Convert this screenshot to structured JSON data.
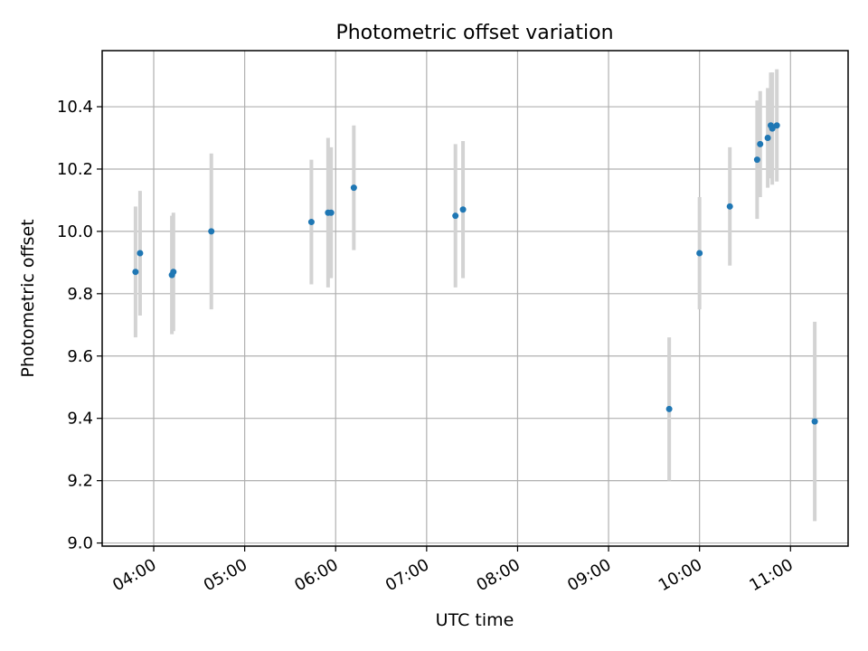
{
  "chart_data": {
    "type": "scatter",
    "title": "Photometric offset variation",
    "xlabel": "UTC time",
    "ylabel": "Photometric offset",
    "x_ticks": [
      "04:00",
      "05:00",
      "06:00",
      "07:00",
      "08:00",
      "09:00",
      "10:00",
      "11:00"
    ],
    "y_ticks": [
      "9.0",
      "9.2",
      "9.4",
      "9.6",
      "9.8",
      "10.0",
      "10.2",
      "10.4"
    ],
    "xlim": [
      "03:26",
      "11:38"
    ],
    "ylim": [
      8.99,
      10.58
    ],
    "grid": true,
    "points": [
      {
        "x": "03:48",
        "y": 9.87,
        "err": 0.21
      },
      {
        "x": "03:51",
        "y": 9.93,
        "err": 0.2
      },
      {
        "x": "04:12",
        "y": 9.86,
        "err": 0.19
      },
      {
        "x": "04:13",
        "y": 9.87,
        "err": 0.19
      },
      {
        "x": "04:38",
        "y": 10.0,
        "err": 0.25
      },
      {
        "x": "05:44",
        "y": 10.03,
        "err": 0.2
      },
      {
        "x": "05:55",
        "y": 10.06,
        "err": 0.24
      },
      {
        "x": "05:57",
        "y": 10.06,
        "err": 0.21
      },
      {
        "x": "06:12",
        "y": 10.14,
        "err": 0.2
      },
      {
        "x": "07:19",
        "y": 10.05,
        "err": 0.23
      },
      {
        "x": "07:24",
        "y": 10.07,
        "err": 0.22
      },
      {
        "x": "09:40",
        "y": 9.43,
        "err": 0.23
      },
      {
        "x": "10:00",
        "y": 9.93,
        "err": 0.18
      },
      {
        "x": "10:20",
        "y": 10.08,
        "err": 0.19
      },
      {
        "x": "10:38",
        "y": 10.23,
        "err": 0.19
      },
      {
        "x": "10:40",
        "y": 10.28,
        "err": 0.17
      },
      {
        "x": "10:45",
        "y": 10.3,
        "err": 0.16
      },
      {
        "x": "10:47",
        "y": 10.34,
        "err": 0.17
      },
      {
        "x": "10:48",
        "y": 10.33,
        "err": 0.18
      },
      {
        "x": "10:51",
        "y": 10.34,
        "err": 0.18
      },
      {
        "x": "11:16",
        "y": 9.39,
        "err": 0.32
      }
    ],
    "marker_color": "#1f77b4",
    "errorbar_color": "#d3d3d3"
  }
}
